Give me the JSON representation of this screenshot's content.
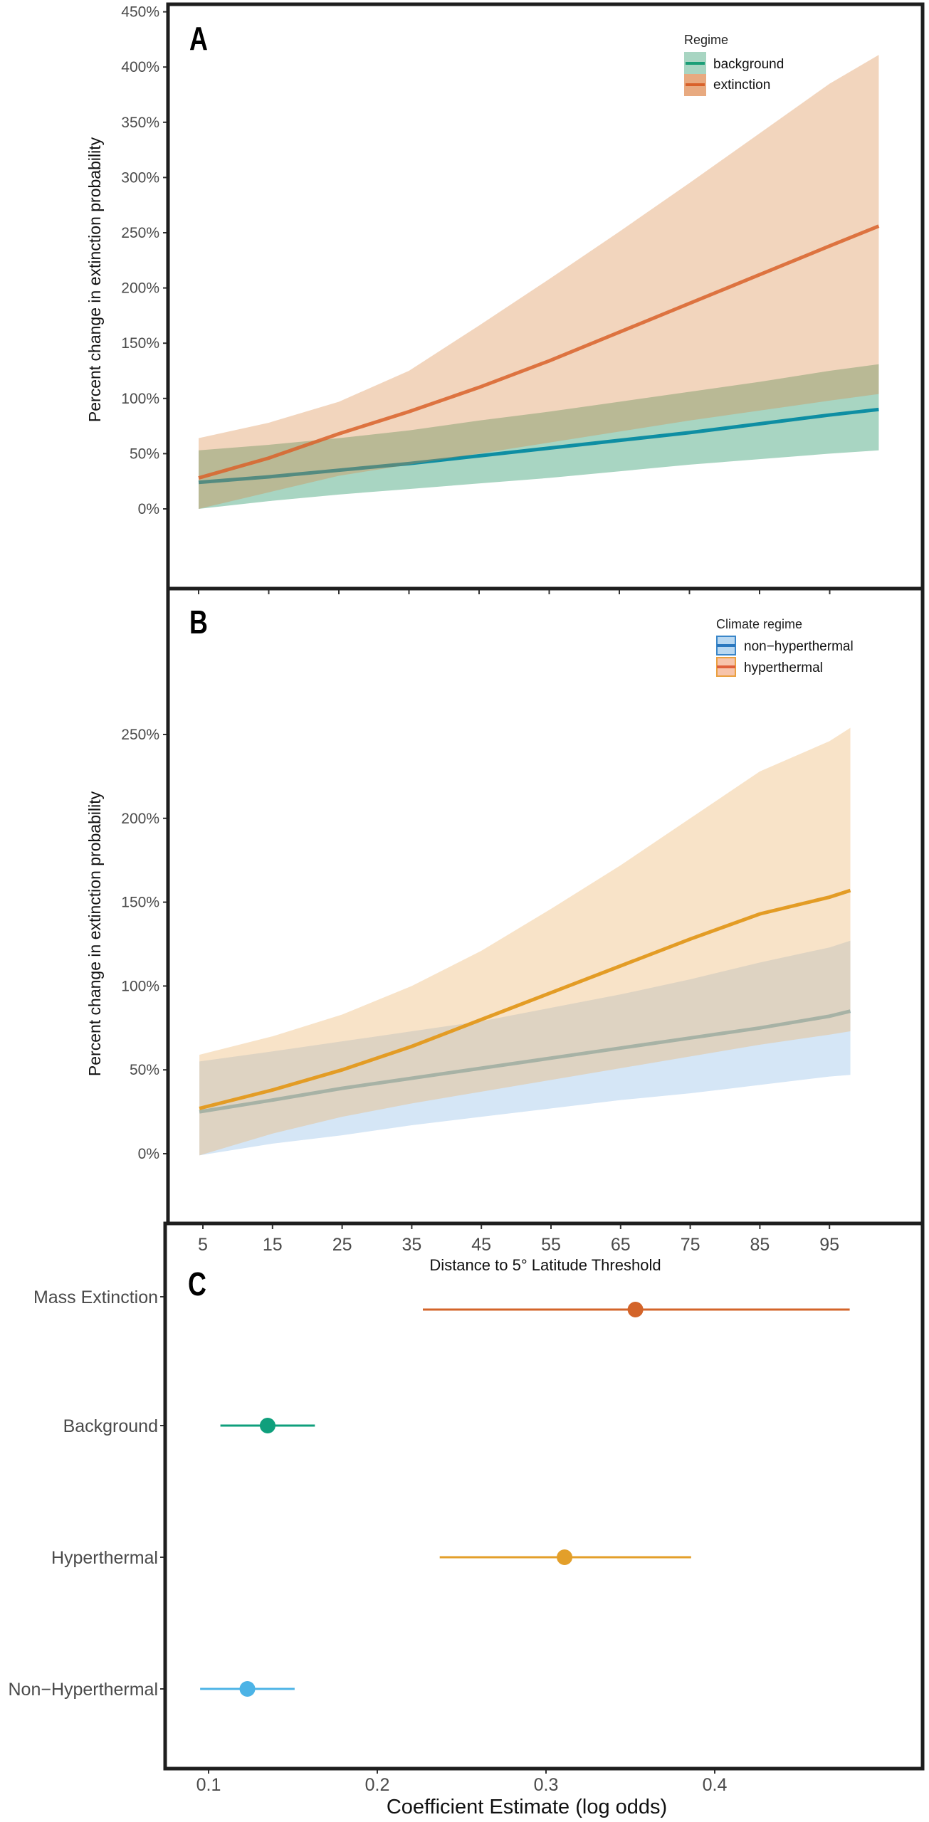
{
  "chart_data": [
    {
      "panel": "A",
      "type": "area",
      "panel_label": "A",
      "ylabel": "Percent change in extinction probability",
      "ytick_labels": [
        "0%",
        "50%",
        "100%",
        "150%",
        "200%",
        "250%",
        "300%",
        "350%",
        "400%",
        "450%"
      ],
      "yticks": [
        0,
        50,
        100,
        150,
        200,
        250,
        300,
        350,
        400,
        450
      ],
      "ylim": [
        -72,
        457
      ],
      "xlim": [
        5,
        102
      ],
      "grid": false,
      "legend": {
        "title": "Regime",
        "placement": "top-right"
      },
      "x": [
        5,
        15,
        25,
        35,
        45,
        55,
        65,
        75,
        85,
        95,
        102
      ],
      "series": [
        {
          "name": "background",
          "line_color": "#0e8ea3",
          "key_line": "#1a9e77",
          "band_color": "#a8d5c2",
          "values": [
            24,
            29,
            35,
            41,
            48,
            55,
            62,
            69,
            77,
            85,
            90
          ],
          "lower": [
            0,
            7,
            13,
            18,
            23,
            28,
            34,
            40,
            45,
            50,
            53
          ],
          "upper": [
            53,
            58,
            64,
            71,
            80,
            88,
            97,
            106,
            115,
            125,
            131
          ]
        },
        {
          "name": "extinction",
          "line_color": "#d9612a",
          "key_line": "#d9612a",
          "band_color": "#d98540",
          "values": [
            28,
            46,
            68,
            88,
            110,
            134,
            160,
            186,
            212,
            238,
            256
          ],
          "lower": [
            0,
            15,
            30,
            40,
            50,
            60,
            70,
            80,
            89,
            98,
            104
          ],
          "upper": [
            64,
            78,
            97,
            125,
            166,
            208,
            251,
            295,
            340,
            385,
            411
          ]
        }
      ]
    },
    {
      "panel": "B",
      "type": "area",
      "panel_label": "B",
      "ylabel": "Percent change in extinction probability",
      "ytick_labels": [
        "0%",
        "50%",
        "100%",
        "150%",
        "200%",
        "250%"
      ],
      "yticks": [
        0,
        50,
        100,
        150,
        200,
        250
      ],
      "ylim": [
        -42,
        337
      ],
      "xlim": [
        0,
        105
      ],
      "xticks": [
        5,
        15,
        25,
        35,
        45,
        55,
        65,
        75,
        85,
        95
      ],
      "xtick_labels": [
        "5",
        "15",
        "25",
        "35",
        "45",
        "55",
        "65",
        "75",
        "85",
        "95"
      ],
      "xlabel": "Distance to 5° Latitude Threshold",
      "grid": false,
      "legend": {
        "title": "Climate regime",
        "placement": "top-right"
      },
      "x": [
        4.5,
        15,
        25,
        35,
        45,
        55,
        65,
        75,
        85,
        95,
        98
      ],
      "series": [
        {
          "name": "non−hyperthermal",
          "line_color": "#72abc2",
          "key_line": "#2a78bf",
          "key_fill": "#b9d8f1",
          "key_border": "#3a86c9",
          "band_color": "#d5e6f6",
          "values": [
            25,
            32,
            39,
            45,
            51,
            57,
            63,
            69,
            75,
            82,
            85
          ],
          "lower": [
            -1,
            6,
            11,
            17,
            22,
            27,
            32,
            36,
            41,
            46,
            47
          ],
          "upper": [
            55,
            61,
            67,
            73,
            79,
            87,
            95,
            104,
            114,
            123,
            127
          ]
        },
        {
          "name": "hyperthermal",
          "line_color": "#e39c25",
          "key_line": "#e0603a",
          "key_fill": "#f7c4ab",
          "key_border": "#eaa040",
          "band_color": "#edb66e",
          "values": [
            27,
            38,
            50,
            64,
            80,
            96,
            112,
            128,
            143,
            153,
            157
          ],
          "lower": [
            -1,
            12,
            22,
            30,
            37,
            44,
            51,
            58,
            65,
            71,
            73
          ],
          "upper": [
            59,
            70,
            83,
            100,
            121,
            146,
            172,
            200,
            228,
            246,
            254
          ]
        }
      ]
    },
    {
      "panel": "C",
      "type": "scatter",
      "panel_label": "C",
      "xlabel": "Coefficient Estimate (log odds)",
      "xticks": [
        0.1,
        0.2,
        0.3,
        0.4
      ],
      "xtick_labels": [
        "0.1",
        "0.2",
        "0.3",
        "0.4"
      ],
      "xlim": [
        0.075,
        0.523
      ],
      "grid": false,
      "categories": [
        "Mass Extinction",
        "Background",
        "Hyperthermal",
        "Non−Hyperthermal"
      ],
      "estimates": [
        0.353,
        0.135,
        0.311,
        0.123
      ],
      "lower": [
        0.227,
        0.107,
        0.237,
        0.095
      ],
      "upper": [
        0.48,
        0.163,
        0.386,
        0.151
      ],
      "colors": [
        "#d3642a",
        "#0f9f7c",
        "#e39f2a",
        "#4cb3e6"
      ]
    }
  ]
}
